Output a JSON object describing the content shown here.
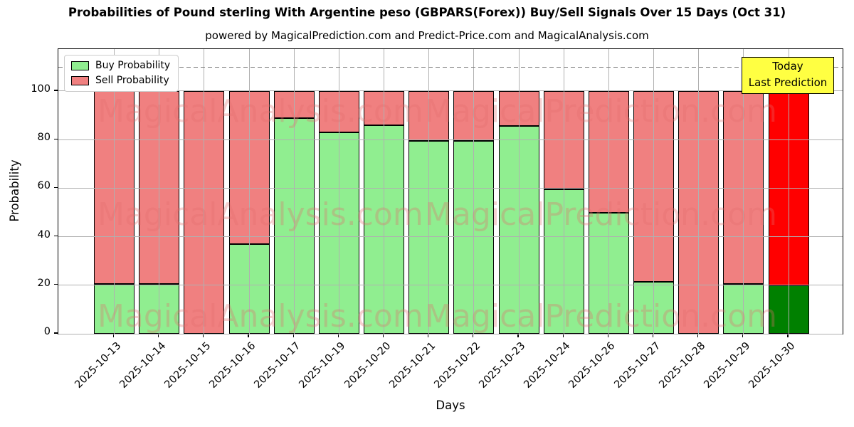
{
  "chart_data": {
    "type": "bar",
    "stacked": true,
    "title": "Probabilities of Pound sterling With Argentine peso (GBPARS(Forex)) Buy/Sell Signals Over 15 Days (Oct 31)",
    "subtitle": "powered by MagicalPrediction.com and Predict-Price.com and MagicalAnalysis.com",
    "xlabel": "Days",
    "ylabel": "Probability",
    "categories": [
      "2025-10-13",
      "2025-10-14",
      "2025-10-15",
      "2025-10-16",
      "2025-10-17",
      "2025-10-19",
      "2025-10-20",
      "2025-10-21",
      "2025-10-22",
      "2025-10-23",
      "2025-10-24",
      "2025-10-26",
      "2025-10-27",
      "2025-10-28",
      "2025-10-29",
      "2025-10-30"
    ],
    "series": [
      {
        "name": "Buy Probability",
        "color": "#90ee90",
        "values": [
          20.5,
          20.5,
          0,
          37,
          89,
          83,
          86,
          79.5,
          79.5,
          85.5,
          59.5,
          50,
          21.5,
          0,
          20.5,
          20
        ]
      },
      {
        "name": "Sell Probability",
        "color": "#f08080",
        "values": [
          79.5,
          79.5,
          100,
          63,
          11,
          17,
          14,
          20.5,
          20.5,
          14.5,
          40.5,
          50,
          78.5,
          100,
          79.5,
          80
        ]
      }
    ],
    "today_index": 15,
    "today_colors": {
      "buy": "#008000",
      "sell": "#ff0000"
    },
    "ylim": [
      0,
      117.3
    ],
    "yticks": [
      0,
      20,
      40,
      60,
      80,
      100
    ],
    "dashed_line_y": 110,
    "grid": true,
    "legend_position": "top-left",
    "annotation": {
      "lines": [
        "Today",
        "Last Prediction"
      ],
      "bg_color": "#ffff42"
    },
    "watermarks": [
      "MagicalAnalysis.com",
      "MagicalPrediction.com"
    ],
    "colors": {
      "grid": "#b0b0b0",
      "dashed_line": "#808080",
      "bar_edge": "#000000",
      "watermark": "rgba(226,110,110,0.32)"
    }
  }
}
